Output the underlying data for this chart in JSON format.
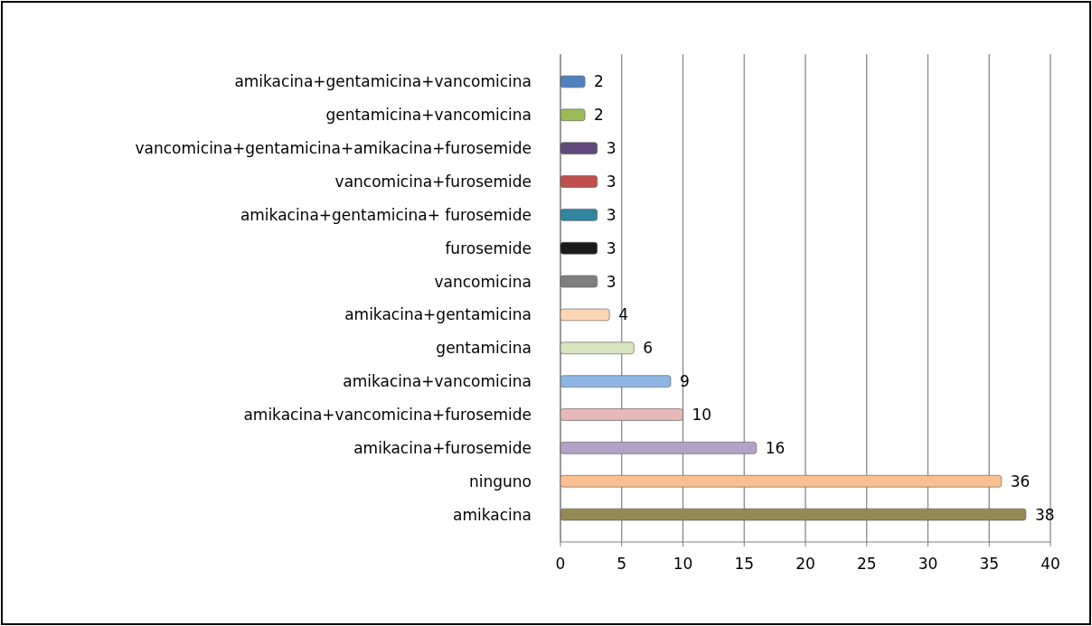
{
  "chart_data": {
    "type": "bar",
    "orientation": "horizontal",
    "categories": [
      "amikacina+gentamicina+vancomicina",
      "gentamicina+vancomicina",
      "vancomicina+gentamicina+amikacina+furosemide",
      "vancomicina+furosemide",
      "amikacina+gentamicina+ furosemide",
      "furosemide",
      "vancomicina",
      "amikacina+gentamicina",
      "gentamicina",
      "amikacina+vancomicina",
      "amikacina+vancomicina+furosemide",
      "amikacina+furosemide",
      "ninguno",
      "amikacina"
    ],
    "values": [
      2,
      2,
      3,
      3,
      3,
      3,
      3,
      4,
      6,
      9,
      10,
      16,
      36,
      38
    ],
    "colors": [
      "#4f81bd",
      "#9bbb59",
      "#604a7b",
      "#c0504d",
      "#31859c",
      "#1a1a1a",
      "#7f7f7f",
      "#fcd5b5",
      "#d7e4bd",
      "#8eb4e3",
      "#e6b9b8",
      "#b3a2c7",
      "#fac090",
      "#948a54"
    ],
    "xlim": [
      0,
      40
    ],
    "xticks": [
      0,
      5,
      10,
      15,
      20,
      25,
      30,
      35,
      40
    ],
    "grid": "x",
    "data_labels": true
  }
}
